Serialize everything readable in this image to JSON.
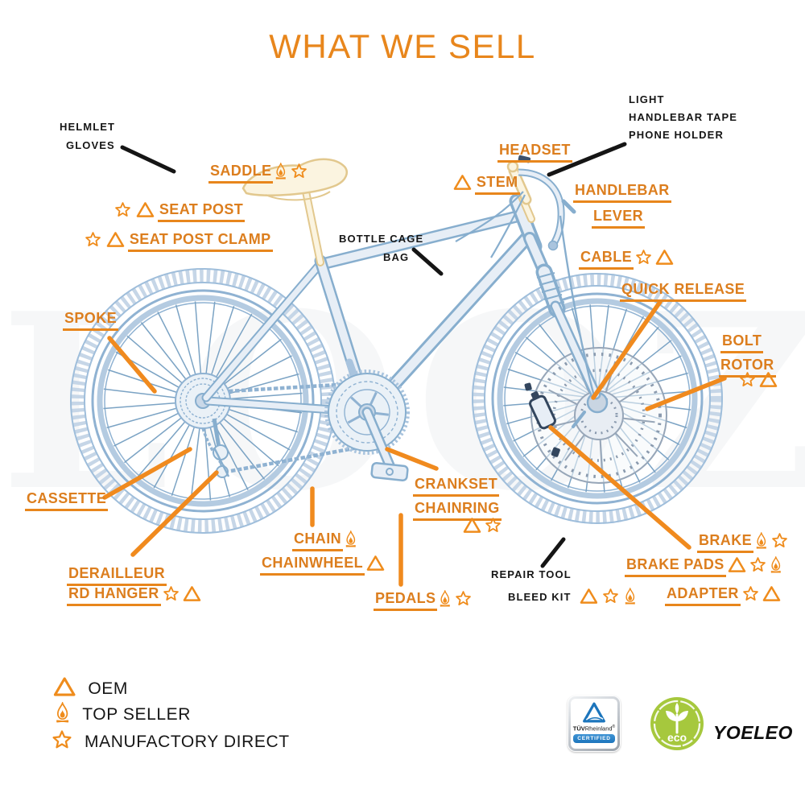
{
  "title": "WHAT WE SELL",
  "watermark": "LOOZ",
  "colors": {
    "accent_orange_text": "#DC7E1E",
    "leader_line_orange": "#F08A1E",
    "icon_orange": "#EF8C1C",
    "label_black": "#161616",
    "bike_blue_stroke": "#7FA7C9",
    "bike_blue_fill": "#E3EBF4",
    "saddle_cream": "#E2C88E",
    "tuv_blue": "#1C75BC",
    "eco_green": "#A6C83D"
  },
  "black_callouts": {
    "helmet": {
      "line1": "HELMLET",
      "line2": "GLOVES"
    },
    "accessories": {
      "line1": "LIGHT",
      "line2": "HANDLEBAR TAPE",
      "line3": "PHONE HOLDER"
    },
    "bottle": {
      "line1": "BOTTLE CAGE",
      "line2": "BAG"
    },
    "repair": {
      "line1": "REPAIR TOOL",
      "line2": "BLEED KIT",
      "icons": [
        "triangle",
        "star",
        "flame"
      ]
    }
  },
  "orange_callouts": {
    "saddle": {
      "text": "SADDLE",
      "icons_after": [
        "flame",
        "star"
      ]
    },
    "seat_post": {
      "text": "SEAT POST",
      "icons_before": [
        "star",
        "triangle"
      ]
    },
    "seat_post_clamp": {
      "text": "SEAT POST CLAMP",
      "icons_before": [
        "star",
        "triangle"
      ]
    },
    "headset": {
      "text": "HEADSET"
    },
    "stem": {
      "text": "STEM",
      "icons_before": [
        "triangle"
      ]
    },
    "handlebar": {
      "text": "HANDLEBAR"
    },
    "lever": {
      "text": "LEVER"
    },
    "cable": {
      "text": "CABLE",
      "icons_after": [
        "star",
        "triangle"
      ]
    },
    "quick_release": {
      "text": "QUICK RELEASE"
    },
    "bolt": {
      "text": "BOLT"
    },
    "rotor": {
      "text": "ROTOR",
      "icons_below": [
        "star",
        "triangle"
      ]
    },
    "spoke": {
      "text": "SPOKE"
    },
    "cassette": {
      "text": "CASSETTE"
    },
    "derailleur": {
      "text": "DERAILLEUR"
    },
    "rd_hanger": {
      "text": "RD HANGER",
      "icons_after": [
        "star",
        "triangle"
      ]
    },
    "chain": {
      "text": "CHAIN",
      "icons_after": [
        "flame"
      ]
    },
    "chainwheel": {
      "text": "CHAINWHEEL",
      "icons_after": [
        "triangle"
      ]
    },
    "crankset": {
      "text": "CRANKSET"
    },
    "chainring": {
      "text": "CHAINRING",
      "icons_below": [
        "triangle",
        "star"
      ]
    },
    "pedals": {
      "text": "PEDALS",
      "icons_after": [
        "flame",
        "star"
      ]
    },
    "brake": {
      "text": "BRAKE",
      "icons_after": [
        "flame",
        "star"
      ]
    },
    "brake_pads": {
      "text": "BRAKE PADS",
      "icons_after": [
        "triangle",
        "star",
        "flame"
      ]
    },
    "adapter": {
      "text": "ADAPTER",
      "icons_after": [
        "star",
        "triangle"
      ]
    }
  },
  "legend": {
    "items": [
      {
        "icon": "triangle",
        "label": "OEM"
      },
      {
        "icon": "flame",
        "label": "TOP SELLER"
      },
      {
        "icon": "star",
        "label": "MANUFACTORY DIRECT"
      }
    ]
  },
  "badges": {
    "tuv": {
      "tuv": "TÜV",
      "rheinland": "Rheinland",
      "registered": "®",
      "certified": "CERTIFIED"
    },
    "eco": {
      "label": "eco"
    },
    "brand": "YOELEO"
  }
}
